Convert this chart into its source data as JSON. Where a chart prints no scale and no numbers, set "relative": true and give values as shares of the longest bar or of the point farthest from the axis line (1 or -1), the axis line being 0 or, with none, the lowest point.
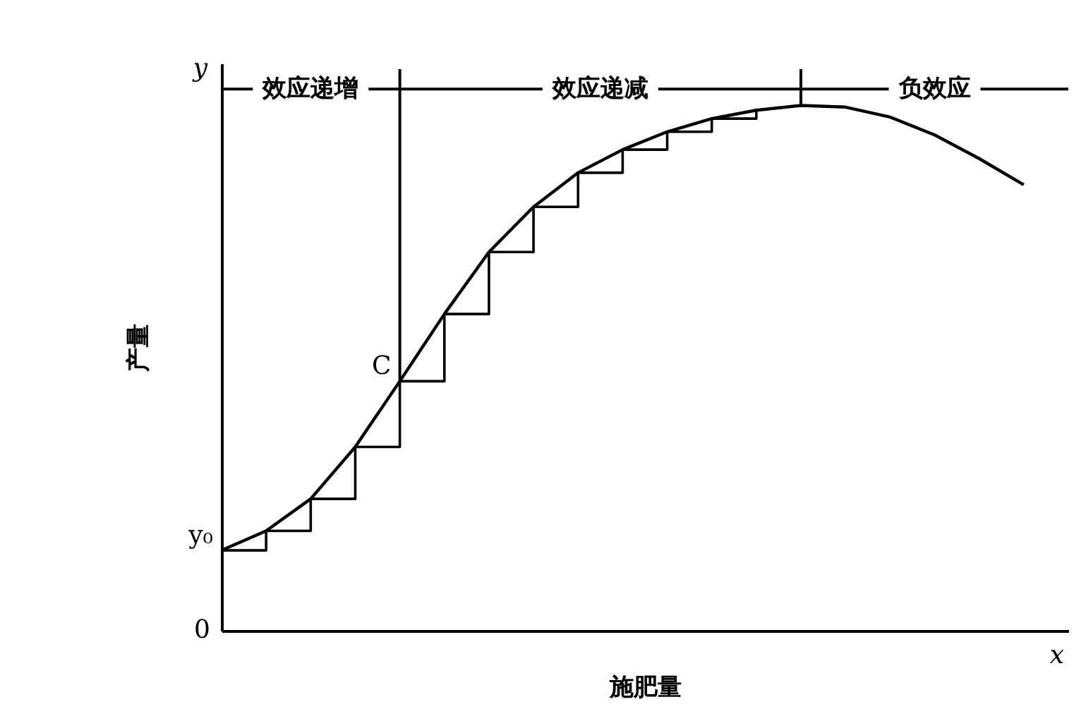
{
  "chart_data": {
    "type": "line",
    "relative": true,
    "xlabel": "施肥量",
    "ylabel": "产量",
    "categories": [
      null,
      null,
      null,
      null,
      null,
      null,
      null,
      null,
      null,
      null,
      null,
      null,
      null,
      null,
      null,
      null,
      null,
      null,
      null,
      null
    ],
    "tick_labels": false,
    "grid": false,
    "series": [
      {
        "color": "#000000",
        "values": [
          0.153,
          0.19,
          0.251,
          0.35,
          0.475,
          0.603,
          0.721,
          0.807,
          0.872,
          0.916,
          0.95,
          0.975,
          0.991,
          1,
          0.997,
          0.978,
          0.944,
          0.899,
          0.849,
          null
        ]
      },
      {
        "type": "step",
        "color": "#000000",
        "values": [
          0.153,
          0.19,
          0.251,
          0.35,
          0.475,
          0.603,
          0.721,
          0.807,
          0.872,
          0.916,
          0.95,
          0.975,
          0.991,
          null,
          null,
          null,
          null,
          null,
          null,
          null
        ]
      }
    ],
    "annotations": [
      "y",
      "0",
      "x",
      "效应递增",
      "效应递减",
      "负效应",
      "y₀",
      "C"
    ]
  }
}
